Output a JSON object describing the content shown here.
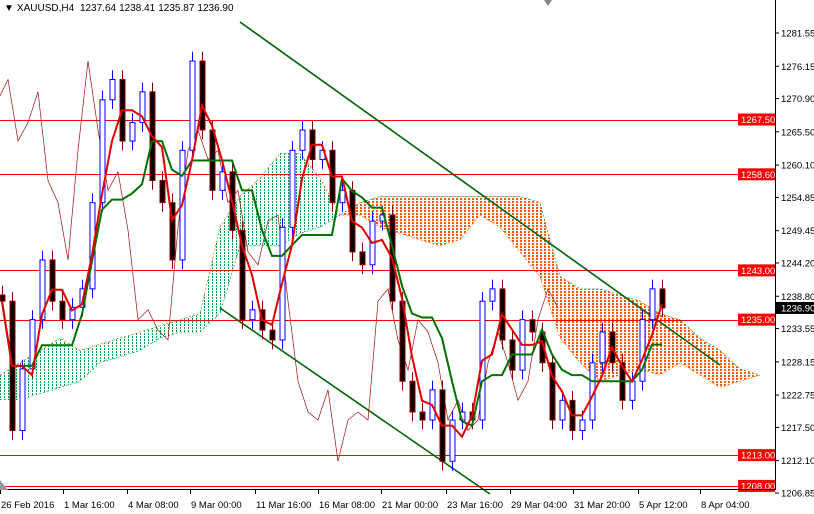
{
  "header": {
    "menu_icon": "triangle-down-icon",
    "symbol": "XAUUSD,H4",
    "open": "1237.64",
    "high": "1238.41",
    "low": "1235.87",
    "close": "1236.90"
  },
  "chart_data": {
    "type": "candlestick",
    "title": "XAUUSD,H4",
    "ylim": [
      1206.85,
      1281.55
    ],
    "y_ticks": [
      "1281.55",
      "1276.15",
      "1270.90",
      "1265.50",
      "1260.10",
      "1254.85",
      "1249.45",
      "1244.20",
      "1238.80",
      "1233.55",
      "1228.15",
      "1222.75",
      "1217.50",
      "1212.10",
      "1206.85"
    ],
    "x_ticks": [
      "26 Feb 2016",
      "1 Mar 16:00",
      "4 Mar 08:00",
      "9 Mar 00:00",
      "11 Mar 16:00",
      "16 Mar 08:00",
      "21 Mar 00:00",
      "23 Mar 16:00",
      "29 Mar 04:00",
      "31 Mar 20:00",
      "5 Apr 12:00",
      "8 Apr 04:00"
    ],
    "closes": [
      1238,
      1217,
      1227,
      1235,
      1244.7,
      1238,
      1235,
      1237,
      1240,
      1254,
      1270.7,
      1274,
      1264,
      1267,
      1272,
      1257.6,
      1254,
      1244.7,
      1262.5,
      1277,
      1265.8,
      1256,
      1259,
      1249.5,
      1235,
      1236.6,
      1233.3,
      1231.7,
      1250,
      1262.5,
      1265.8,
      1261,
      1262.5,
      1254,
      1256,
      1246,
      1243.9,
      1251,
      1252,
      1238,
      1225,
      1220,
      1218.7,
      1223.6,
      1212,
      1218.7,
      1220,
      1218.7,
      1238,
      1240,
      1231.7,
      1226.8,
      1235,
      1233,
      1228,
      1218.7,
      1221.9,
      1217,
      1218.7,
      1228,
      1233,
      1228,
      1221.9,
      1225,
      1235,
      1240,
      1236.9
    ],
    "current_price": "1236.90",
    "levels": [
      "1267.50",
      "1258.60",
      "1243.00",
      "1235.00",
      "1213.00",
      "1208.00"
    ],
    "trendlines": [
      {
        "from": [
          "9 Mar 08:00",
          1281.6
        ],
        "to": [
          "8 Apr 12:00",
          1227.6
        ]
      },
      {
        "from": [
          "9 Mar 00:00",
          1236.9
        ],
        "to": [
          "28 Mar 12:00",
          1206.8
        ]
      }
    ],
    "ichimoku": {
      "span_a": [
        1226,
        1228,
        1230,
        1232,
        1230,
        1231,
        1232,
        1233,
        1234,
        1235,
        1236,
        1250,
        1255,
        1258,
        1262,
        1262,
        1258,
        1252,
        1252,
        1250,
        1249,
        1248,
        1247,
        1248,
        1252,
        1250,
        1246,
        1242,
        1232,
        1228,
        1225,
        1226,
        1227,
        1226,
        1228,
        1226,
        1224,
        1225,
        1226
      ],
      "span_b": [
        1222,
        1222,
        1223,
        1224,
        1225,
        1228,
        1229,
        1230,
        1232,
        1233,
        1233,
        1236,
        1247,
        1247,
        1247,
        1249,
        1250,
        1252,
        1254,
        1255,
        1255,
        1255,
        1255,
        1255,
        1255,
        1255,
        1255,
        1254,
        1242,
        1240,
        1240,
        1239,
        1238,
        1236,
        1235,
        1232,
        1230,
        1227,
        1226
      ]
    },
    "colors": {
      "bull": "#0000ff",
      "bear": "#8b0000",
      "tenkan": "#e00000",
      "kijun": "#007000",
      "chikou": "#a01010",
      "cloud_bull": "#00a050",
      "cloud_bear": "#ff5a00",
      "level": "#ff0000",
      "trendline": "#006400"
    }
  }
}
